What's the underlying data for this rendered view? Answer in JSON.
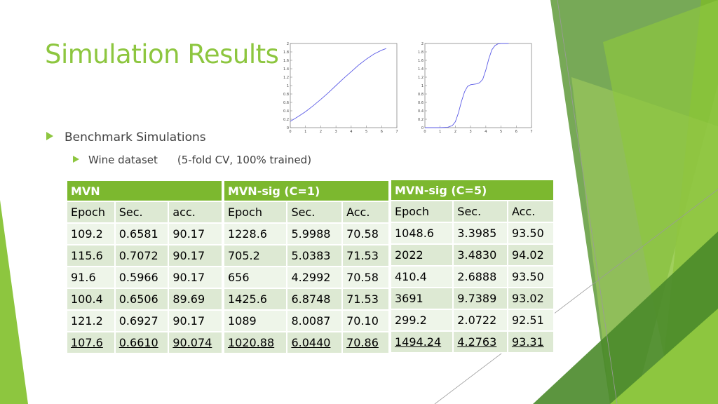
{
  "title": "Simulation Results",
  "bullets": {
    "level1": "Benchmark Simulations",
    "level2_label": "Wine dataset",
    "level2_note": "(5-fold CV, 100% trained)"
  },
  "colors": {
    "accent": "#8dc63f",
    "header": "#7cb82f",
    "row_light": "#eef5e9",
    "row_dark": "#dde9d3",
    "curve": "#5a5ae6"
  },
  "plots": [
    {
      "y_ticks": [
        "2",
        "1.8",
        "1.6",
        "1.4",
        "1.2",
        "1",
        "0.8",
        "0.6",
        "0.4",
        "0.2",
        "0"
      ],
      "x_ticks": [
        "0",
        "1",
        "2",
        "3",
        "4",
        "5",
        "6",
        "7"
      ],
      "xlim": [
        0,
        7
      ],
      "ylim": [
        0,
        2
      ],
      "x": [
        0,
        0.5,
        1,
        1.5,
        2,
        2.5,
        3,
        3.5,
        4,
        4.5,
        5,
        5.5,
        6,
        6.3
      ],
      "y": [
        0.15,
        0.26,
        0.38,
        0.52,
        0.67,
        0.83,
        1.0,
        1.17,
        1.33,
        1.49,
        1.63,
        1.75,
        1.84,
        1.88
      ]
    },
    {
      "y_ticks": [
        "2",
        "1.8",
        "1.6",
        "1.4",
        "1.2",
        "1",
        "0.8",
        "0.6",
        "0.4",
        "0.2",
        "0"
      ],
      "x_ticks": [
        "0",
        "1",
        "2",
        "3",
        "4",
        "5",
        "6",
        "7"
      ],
      "xlim": [
        0,
        7
      ],
      "ylim": [
        0,
        2
      ],
      "x": [
        0,
        1,
        1.5,
        1.8,
        2.0,
        2.2,
        2.4,
        2.6,
        2.8,
        3.0,
        3.2,
        3.4,
        3.6,
        3.8,
        4.0,
        4.2,
        4.4,
        4.6,
        4.8,
        5.0,
        5.2,
        5.5
      ],
      "y": [
        0,
        0,
        0.01,
        0.05,
        0.14,
        0.35,
        0.62,
        0.85,
        0.98,
        1.02,
        1.03,
        1.04,
        1.07,
        1.15,
        1.37,
        1.64,
        1.85,
        1.95,
        1.99,
        2.0,
        2.0,
        2.0
      ]
    }
  ],
  "tables": [
    {
      "header": "MVN",
      "columns": [
        "Epoch",
        "Sec.",
        "acc."
      ],
      "rows": [
        [
          "109.2",
          "0.6581",
          "90.17"
        ],
        [
          "115.6",
          "0.7072",
          "90.17"
        ],
        [
          "91.6",
          "0.5966",
          "90.17"
        ],
        [
          "100.4",
          "0.6506",
          "89.69"
        ],
        [
          "121.2",
          "0.6927",
          "90.17"
        ],
        [
          "107.6",
          "0.6610",
          "90.074"
        ]
      ]
    },
    {
      "header": "MVN-sig (C=1)",
      "columns": [
        "Epoch",
        "Sec.",
        "Acc."
      ],
      "rows": [
        [
          "1228.6",
          "5.9988",
          "70.58"
        ],
        [
          "705.2",
          "5.0383",
          "71.53"
        ],
        [
          "656",
          "4.2992",
          "70.58"
        ],
        [
          "1425.6",
          "6.8748",
          "71.53"
        ],
        [
          "1089",
          "8.0087",
          "70.10"
        ],
        [
          "1020.88",
          "6.0440",
          "70.86"
        ]
      ]
    },
    {
      "header": "MVN-sig (C=5)",
      "columns": [
        "Epoch",
        "Sec.",
        "Acc."
      ],
      "rows": [
        [
          "1048.6",
          "3.3985",
          "93.50"
        ],
        [
          "2022",
          "3.4830",
          "94.02"
        ],
        [
          "410.4",
          "2.6888",
          "93.50"
        ],
        [
          "3691",
          "9.7389",
          "93.02"
        ],
        [
          "299.2",
          "2.0722",
          "92.51"
        ],
        [
          "1494.24",
          "4.2763",
          "93.31"
        ]
      ]
    }
  ]
}
